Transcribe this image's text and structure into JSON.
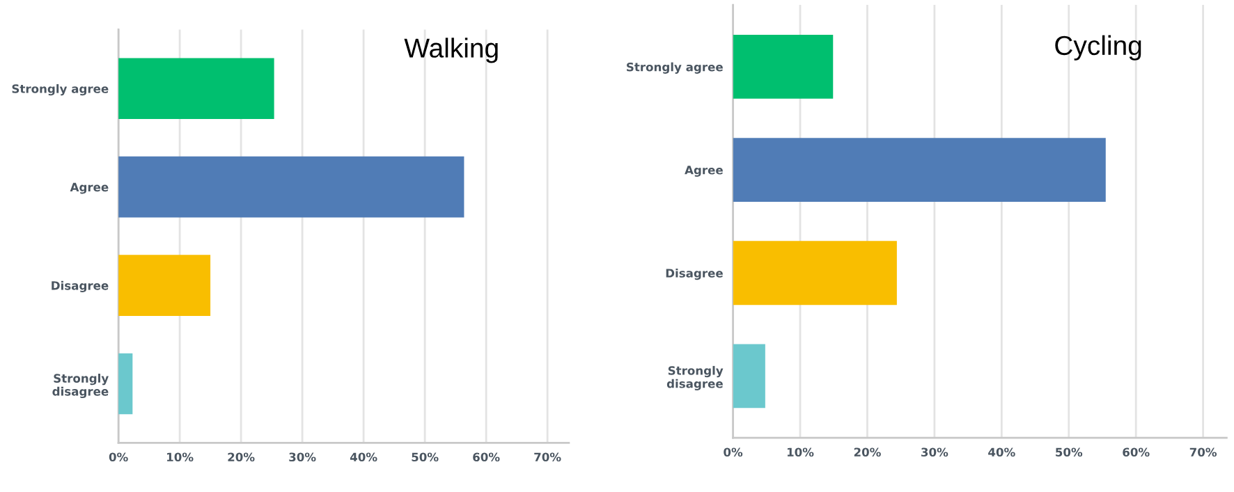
{
  "chart_data": [
    {
      "type": "bar",
      "orientation": "horizontal",
      "title": "Walking",
      "categories": [
        "Strongly agree",
        "Agree",
        "Disagree",
        "Strongly\ndisagree"
      ],
      "values": [
        25.4,
        56.4,
        15.0,
        2.3
      ],
      "colors": [
        "#00bf6f",
        "#507cb6",
        "#f9be00",
        "#6bc8cd"
      ],
      "xlim": [
        0,
        73.5
      ],
      "xticks": [
        {
          "value": 0,
          "label": "0%"
        },
        {
          "value": 10,
          "label": "10%"
        },
        {
          "value": 20,
          "label": "20%"
        },
        {
          "value": 30,
          "label": "30%"
        },
        {
          "value": 40,
          "label": "40%"
        },
        {
          "value": 50,
          "label": "50%"
        },
        {
          "value": 60,
          "label": "60%"
        },
        {
          "value": 70,
          "label": "70%"
        }
      ],
      "grid": "x"
    },
    {
      "type": "bar",
      "orientation": "horizontal",
      "title": "Cycling",
      "categories": [
        "Strongly agree",
        "Agree",
        "Disagree",
        "Strongly\ndisagree"
      ],
      "values": [
        14.9,
        55.5,
        24.4,
        4.8
      ],
      "colors": [
        "#00bf6f",
        "#507cb6",
        "#f9be00",
        "#6bc8cd"
      ],
      "xlim": [
        0,
        73.5
      ],
      "xticks": [
        {
          "value": 0,
          "label": "0%"
        },
        {
          "value": 10,
          "label": "10%"
        },
        {
          "value": 20,
          "label": "20%"
        },
        {
          "value": 30,
          "label": "30%"
        },
        {
          "value": 40,
          "label": "40%"
        },
        {
          "value": 50,
          "label": "50%"
        },
        {
          "value": 60,
          "label": "60%"
        },
        {
          "value": 70,
          "label": "70%"
        }
      ],
      "grid": "x"
    }
  ]
}
